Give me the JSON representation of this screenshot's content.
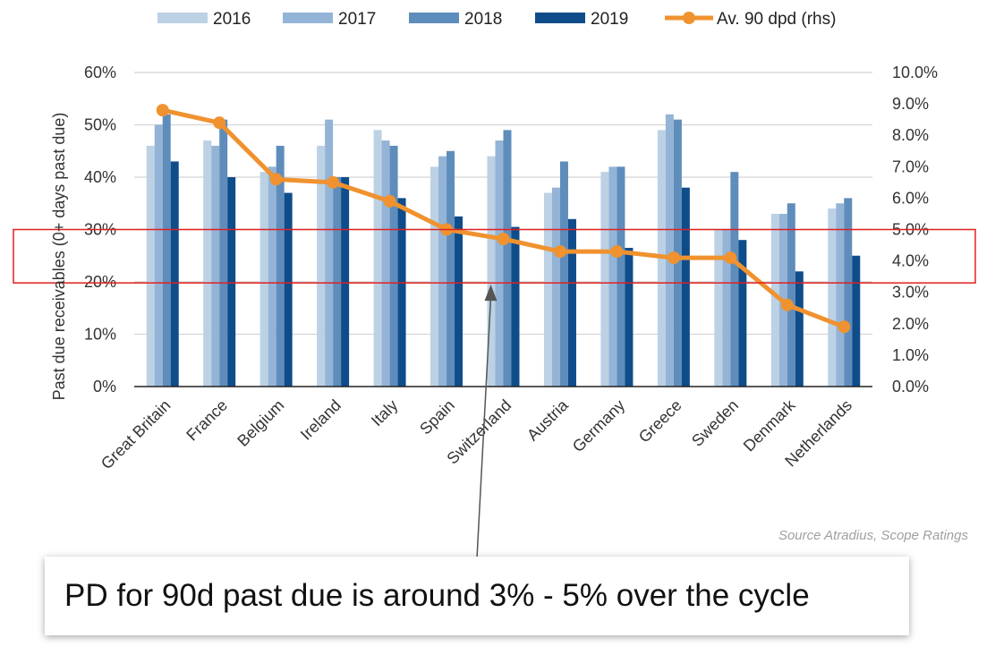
{
  "chart_data": {
    "type": "bar",
    "categories": [
      "Great Britain",
      "France",
      "Belgium",
      "Ireland",
      "Italy",
      "Spain",
      "Switzerland",
      "Austria",
      "Germany",
      "Greece",
      "Sweden",
      "Denmark",
      "Netherlands"
    ],
    "series": [
      {
        "name": "2016",
        "axis": "left",
        "color": "#bcd1e4",
        "values": [
          46,
          47,
          41,
          46,
          49,
          42,
          44,
          37,
          41,
          49,
          30,
          33,
          34
        ]
      },
      {
        "name": "2017",
        "axis": "left",
        "color": "#93b4d6",
        "values": [
          50,
          46,
          42,
          51,
          47,
          44,
          47,
          38,
          42,
          52,
          30,
          33,
          35
        ]
      },
      {
        "name": "2018",
        "axis": "left",
        "color": "#5f8dbb",
        "values": [
          52,
          51,
          46,
          40,
          46,
          45,
          49,
          43,
          42,
          51,
          41,
          35,
          36
        ]
      },
      {
        "name": "2019",
        "axis": "left",
        "color": "#0f4c8a",
        "values": [
          43,
          40,
          37,
          40,
          36,
          32.5,
          30.5,
          32,
          26.5,
          38,
          28,
          22,
          25
        ]
      },
      {
        "name": "Av. 90 dpd (rhs)",
        "type": "line",
        "axis": "right",
        "color": "#f0922f",
        "values": [
          8.8,
          8.4,
          6.6,
          6.5,
          5.9,
          5.0,
          4.7,
          4.3,
          4.3,
          4.1,
          4.1,
          2.6,
          1.9
        ]
      }
    ],
    "ylabel": "Past due receivables (0+ days past due)",
    "ylim": [
      0,
      60
    ],
    "yticks": [
      "0%",
      "10%",
      "20%",
      "30%",
      "40%",
      "50%",
      "60%"
    ],
    "y2lim": [
      0,
      10
    ],
    "y2ticks": [
      "0.0%",
      "1.0%",
      "2.0%",
      "3.0%",
      "4.0%",
      "5.0%",
      "6.0%",
      "7.0%",
      "8.0%",
      "9.0%",
      "10.0%"
    ],
    "grid": true,
    "legend_position": "top",
    "highlight_band": {
      "axis": "right",
      "range": [
        3.3,
        5.0
      ],
      "color": "#e02020"
    },
    "source": "Source Atradius, Scope Ratings",
    "callout": "PD for 90d past due is around 3% - 5% over the cycle"
  }
}
